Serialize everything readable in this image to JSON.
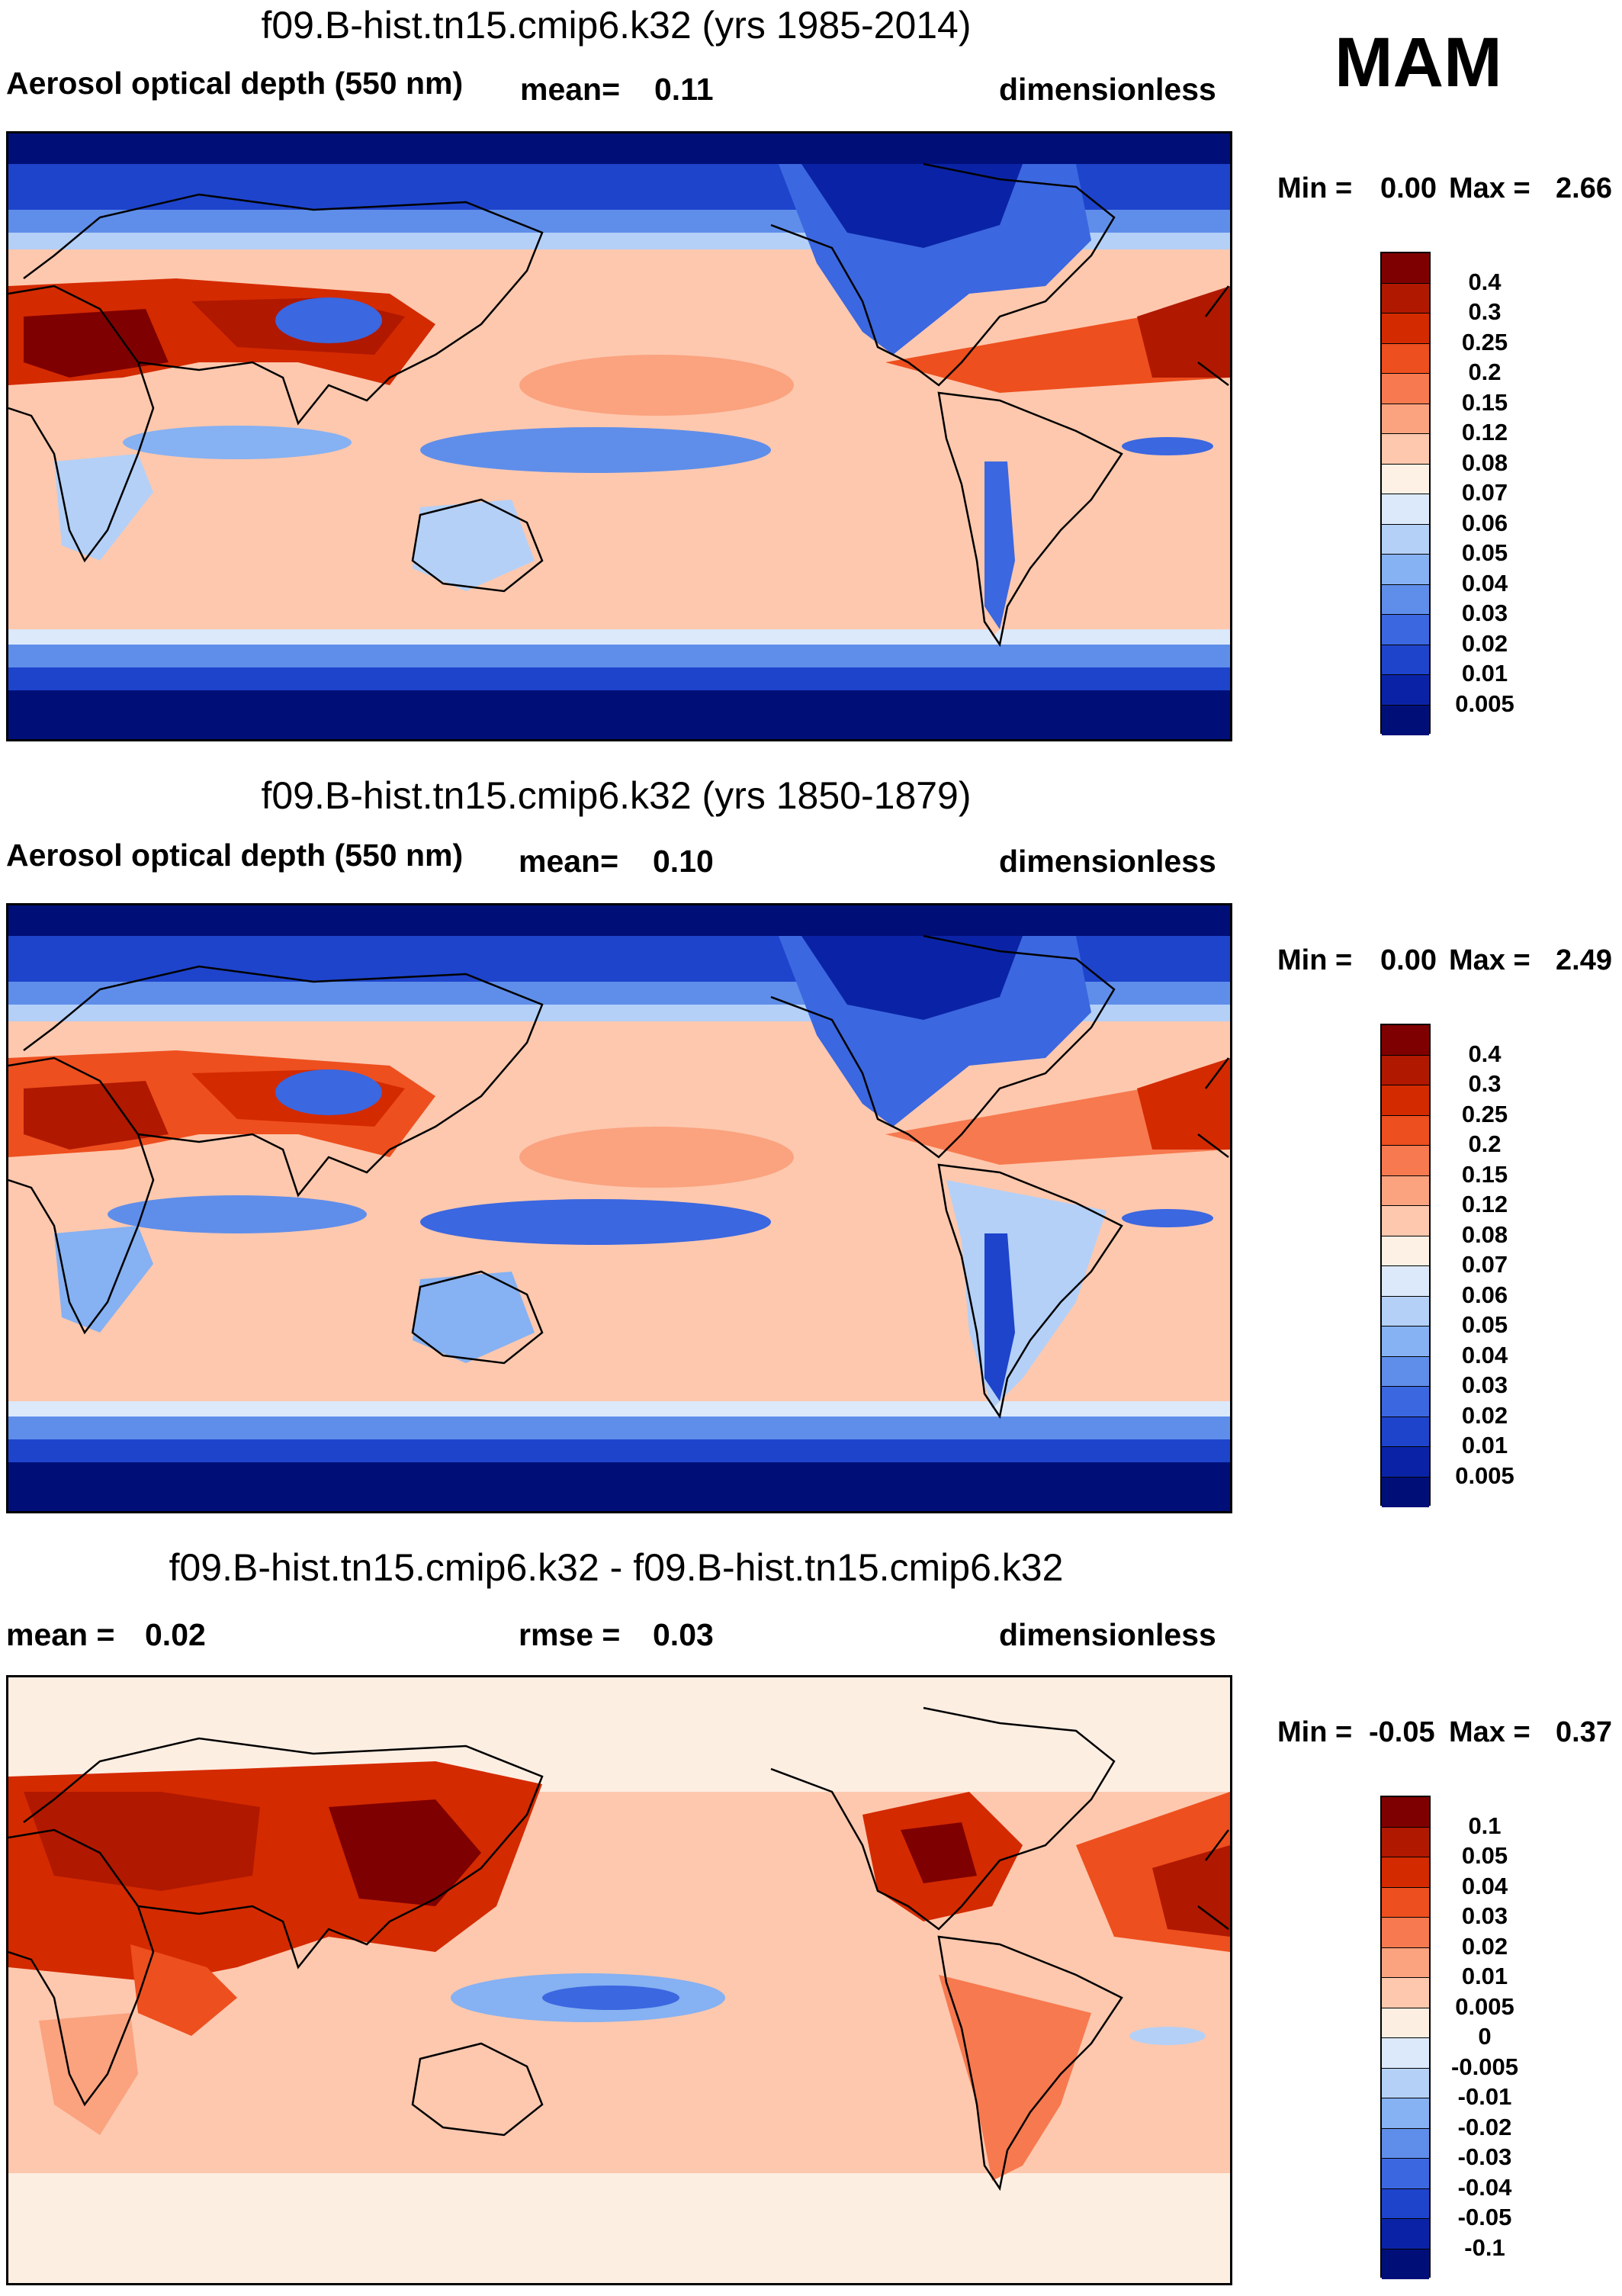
{
  "season": "MAM",
  "panels": [
    {
      "title": "f09.B-hist.tn15.cmip6.k32 (yrs 1985-2014)",
      "left_label": "Aerosol optical depth (550 nm)",
      "mean_label": "mean=",
      "mean_value": "0.11",
      "units": "dimensionless",
      "min_label": "Min =",
      "min_value": "0.00",
      "max_label": "Max =",
      "max_value": "2.66",
      "colorbar": {
        "labels": [
          "0.4",
          "0.3",
          "0.25",
          "0.2",
          "0.15",
          "0.12",
          "0.08",
          "0.07",
          "0.06",
          "0.05",
          "0.04",
          "0.03",
          "0.02",
          "0.01",
          "0.005"
        ],
        "colors": [
          "#7f0000",
          "#b01800",
          "#d42a00",
          "#ee4f1e",
          "#f7794f",
          "#fba27f",
          "#fdc8ae",
          "#fdf0e4",
          "#dbe9fb",
          "#b4d0f7",
          "#86b1f2",
          "#5f8eea",
          "#3b67e0",
          "#1e44cc",
          "#0a23a6",
          "#000f78"
        ]
      },
      "map_style": "aod"
    },
    {
      "title": "f09.B-hist.tn15.cmip6.k32 (yrs 1850-1879)",
      "left_label": "Aerosol optical depth (550 nm)",
      "mean_label": "mean=",
      "mean_value": "0.10",
      "units": "dimensionless",
      "min_label": "Min =",
      "min_value": "0.00",
      "max_label": "Max =",
      "max_value": "2.49",
      "colorbar": {
        "labels": [
          "0.4",
          "0.3",
          "0.25",
          "0.2",
          "0.15",
          "0.12",
          "0.08",
          "0.07",
          "0.06",
          "0.05",
          "0.04",
          "0.03",
          "0.02",
          "0.01",
          "0.005"
        ],
        "colors": [
          "#7f0000",
          "#b01800",
          "#d42a00",
          "#ee4f1e",
          "#f7794f",
          "#fba27f",
          "#fdc8ae",
          "#fdf0e4",
          "#dbe9fb",
          "#b4d0f7",
          "#86b1f2",
          "#5f8eea",
          "#3b67e0",
          "#1e44cc",
          "#0a23a6",
          "#000f78"
        ]
      },
      "map_style": "aod"
    },
    {
      "title": "f09.B-hist.tn15.cmip6.k32 - f09.B-hist.tn15.cmip6.k32",
      "left_label": "mean =",
      "mean_label": "",
      "mean_value": "0.02",
      "rmse_label": "rmse =",
      "rmse_value": "0.03",
      "units": "dimensionless",
      "min_label": "Min =",
      "min_value": "-0.05",
      "max_label": "Max =",
      "max_value": "0.37",
      "colorbar": {
        "labels": [
          "0.1",
          "0.05",
          "0.04",
          "0.03",
          "0.02",
          "0.01",
          "0.005",
          "0",
          "-0.005",
          "-0.01",
          "-0.02",
          "-0.03",
          "-0.04",
          "-0.05",
          "-0.1"
        ],
        "colors": [
          "#7f0000",
          "#b01800",
          "#d42a00",
          "#ee4f1e",
          "#f7794f",
          "#fba27f",
          "#fdc8ae",
          "#fdeee2",
          "#dbe9fb",
          "#b4d0f7",
          "#86b1f2",
          "#5f8eea",
          "#3b67e0",
          "#1e44cc",
          "#0a23a6",
          "#000f78"
        ]
      },
      "map_style": "diff"
    }
  ]
}
